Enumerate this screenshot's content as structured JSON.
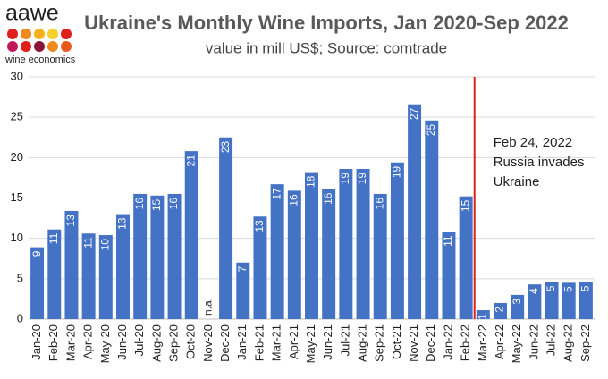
{
  "logo": {
    "name": "aawe",
    "subtitle": "wine economics"
  },
  "chart_data": {
    "type": "bar",
    "title": "Ukraine's Monthly Wine Imports, Jan 2020-Sep 2022",
    "subtitle": "value in mill US$; Source: comtrade",
    "categories": [
      "Jan-20",
      "Feb-20",
      "Mar-20",
      "Apr-20",
      "May-20",
      "Jun-20",
      "Jul-20",
      "Aug-20",
      "Sep-20",
      "Oct-20",
      "Nov-20",
      "Dec-20",
      "Jan-21",
      "Feb-21",
      "Mar-21",
      "Apr-21",
      "May-21",
      "Jun-21",
      "Jul-21",
      "Aug-21",
      "Sep-21",
      "Oct-21",
      "Nov-21",
      "Dec-21",
      "Jan-22",
      "Feb-22",
      "Mar-22",
      "Apr-22",
      "May-22",
      "Jun-22",
      "Jul-22",
      "Aug-22",
      "Sep-22"
    ],
    "values": [
      8.9,
      11.1,
      13.4,
      10.6,
      10.4,
      13.0,
      15.5,
      15.3,
      15.5,
      20.8,
      null,
      22.5,
      7.0,
      12.7,
      16.7,
      15.9,
      18.2,
      16.1,
      18.6,
      18.6,
      15.5,
      19.4,
      26.6,
      24.6,
      10.8,
      15.2,
      1.1,
      2.0,
      3.0,
      4.3,
      4.6,
      4.5,
      4.6
    ],
    "value_labels": [
      "9",
      "11",
      "13",
      "11",
      "10",
      "13",
      "16",
      "15",
      "16",
      "21",
      "n.a.",
      "23",
      "7",
      "13",
      "17",
      "16",
      "18",
      "16",
      "19",
      "19",
      "16",
      "19",
      "27",
      "25",
      "11",
      "15",
      "1",
      "2",
      "3",
      "4",
      "5",
      "5",
      "5"
    ],
    "color": "#4472c4",
    "ylim": [
      0,
      30
    ],
    "yticks": [
      0,
      5,
      10,
      15,
      20,
      25,
      30
    ],
    "grid": true,
    "annotation": {
      "lines": [
        "Feb 24, 2022",
        "Russia invades",
        "Ukraine"
      ],
      "color": "#e0201b"
    }
  }
}
